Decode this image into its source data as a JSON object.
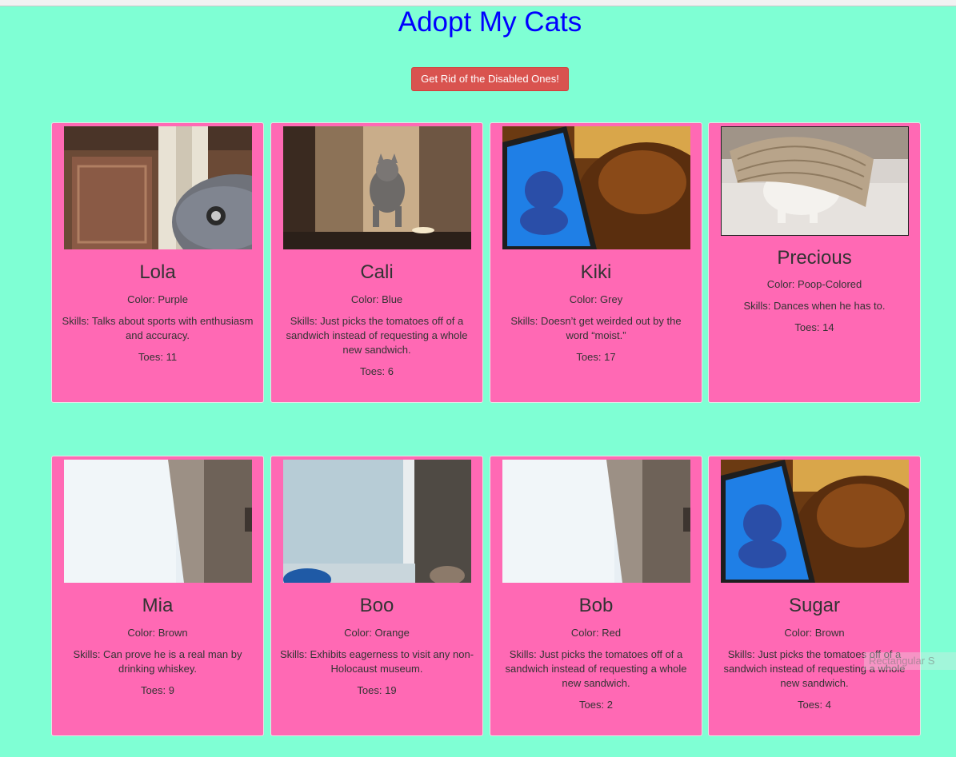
{
  "page": {
    "title": "Adopt My Cats",
    "button_label": "Get Rid of the Disabled Ones!"
  },
  "cats": [
    {
      "name": "Lola",
      "color": "Color: Purple",
      "skills": "Skills: Talks about sports with enthusiasm and accuracy.",
      "toes": "Toes: 11",
      "image": "grey-cat-peeking-door-photo"
    },
    {
      "name": "Cali",
      "color": "Color: Blue",
      "skills": "Skills: Just picks the tomatoes off of a sandwich instead of requesting a whole new sandwich.",
      "toes": "Toes: 6",
      "image": "kitten-jumping-hallway-photo"
    },
    {
      "name": "Kiki",
      "color": "Color: Grey",
      "skills": "Skills: Doesn’t get weirded out by the word “moist.”",
      "toes": "Toes: 17",
      "image": "cat-watching-laptop-photo"
    },
    {
      "name": "Precious",
      "color": "Color: Poop-Colored",
      "skills": "Skills: Dances when he has to.",
      "toes": "Toes: 14",
      "image": "cat-under-basket-photo"
    },
    {
      "name": "Mia",
      "color": "Color: Brown",
      "skills": "Skills: Can prove he is a real man by drinking whiskey.",
      "toes": "Toes: 9",
      "image": "white-wall-doorframe-photo"
    },
    {
      "name": "Boo",
      "color": "Color: Orange",
      "skills": "Skills: Exhibits eagerness to visit any non-Holocaust museum.",
      "toes": "Toes: 19",
      "image": "blue-wall-doorway-photo"
    },
    {
      "name": "Bob",
      "color": "Color: Red",
      "skills": "Skills: Just picks the tomatoes off of a sandwich instead of requesting a whole new sandwich.",
      "toes": "Toes: 2",
      "image": "white-wall-doorframe-photo"
    },
    {
      "name": "Sugar",
      "color": "Color: Brown",
      "skills": "Skills: Just picks the tomatoes off of a sandwich instead of requesting a whole new sandwich.",
      "toes": "Toes: 4",
      "image": "cat-watching-laptop-photo"
    }
  ],
  "overlay": {
    "text": "Rectangular S"
  }
}
